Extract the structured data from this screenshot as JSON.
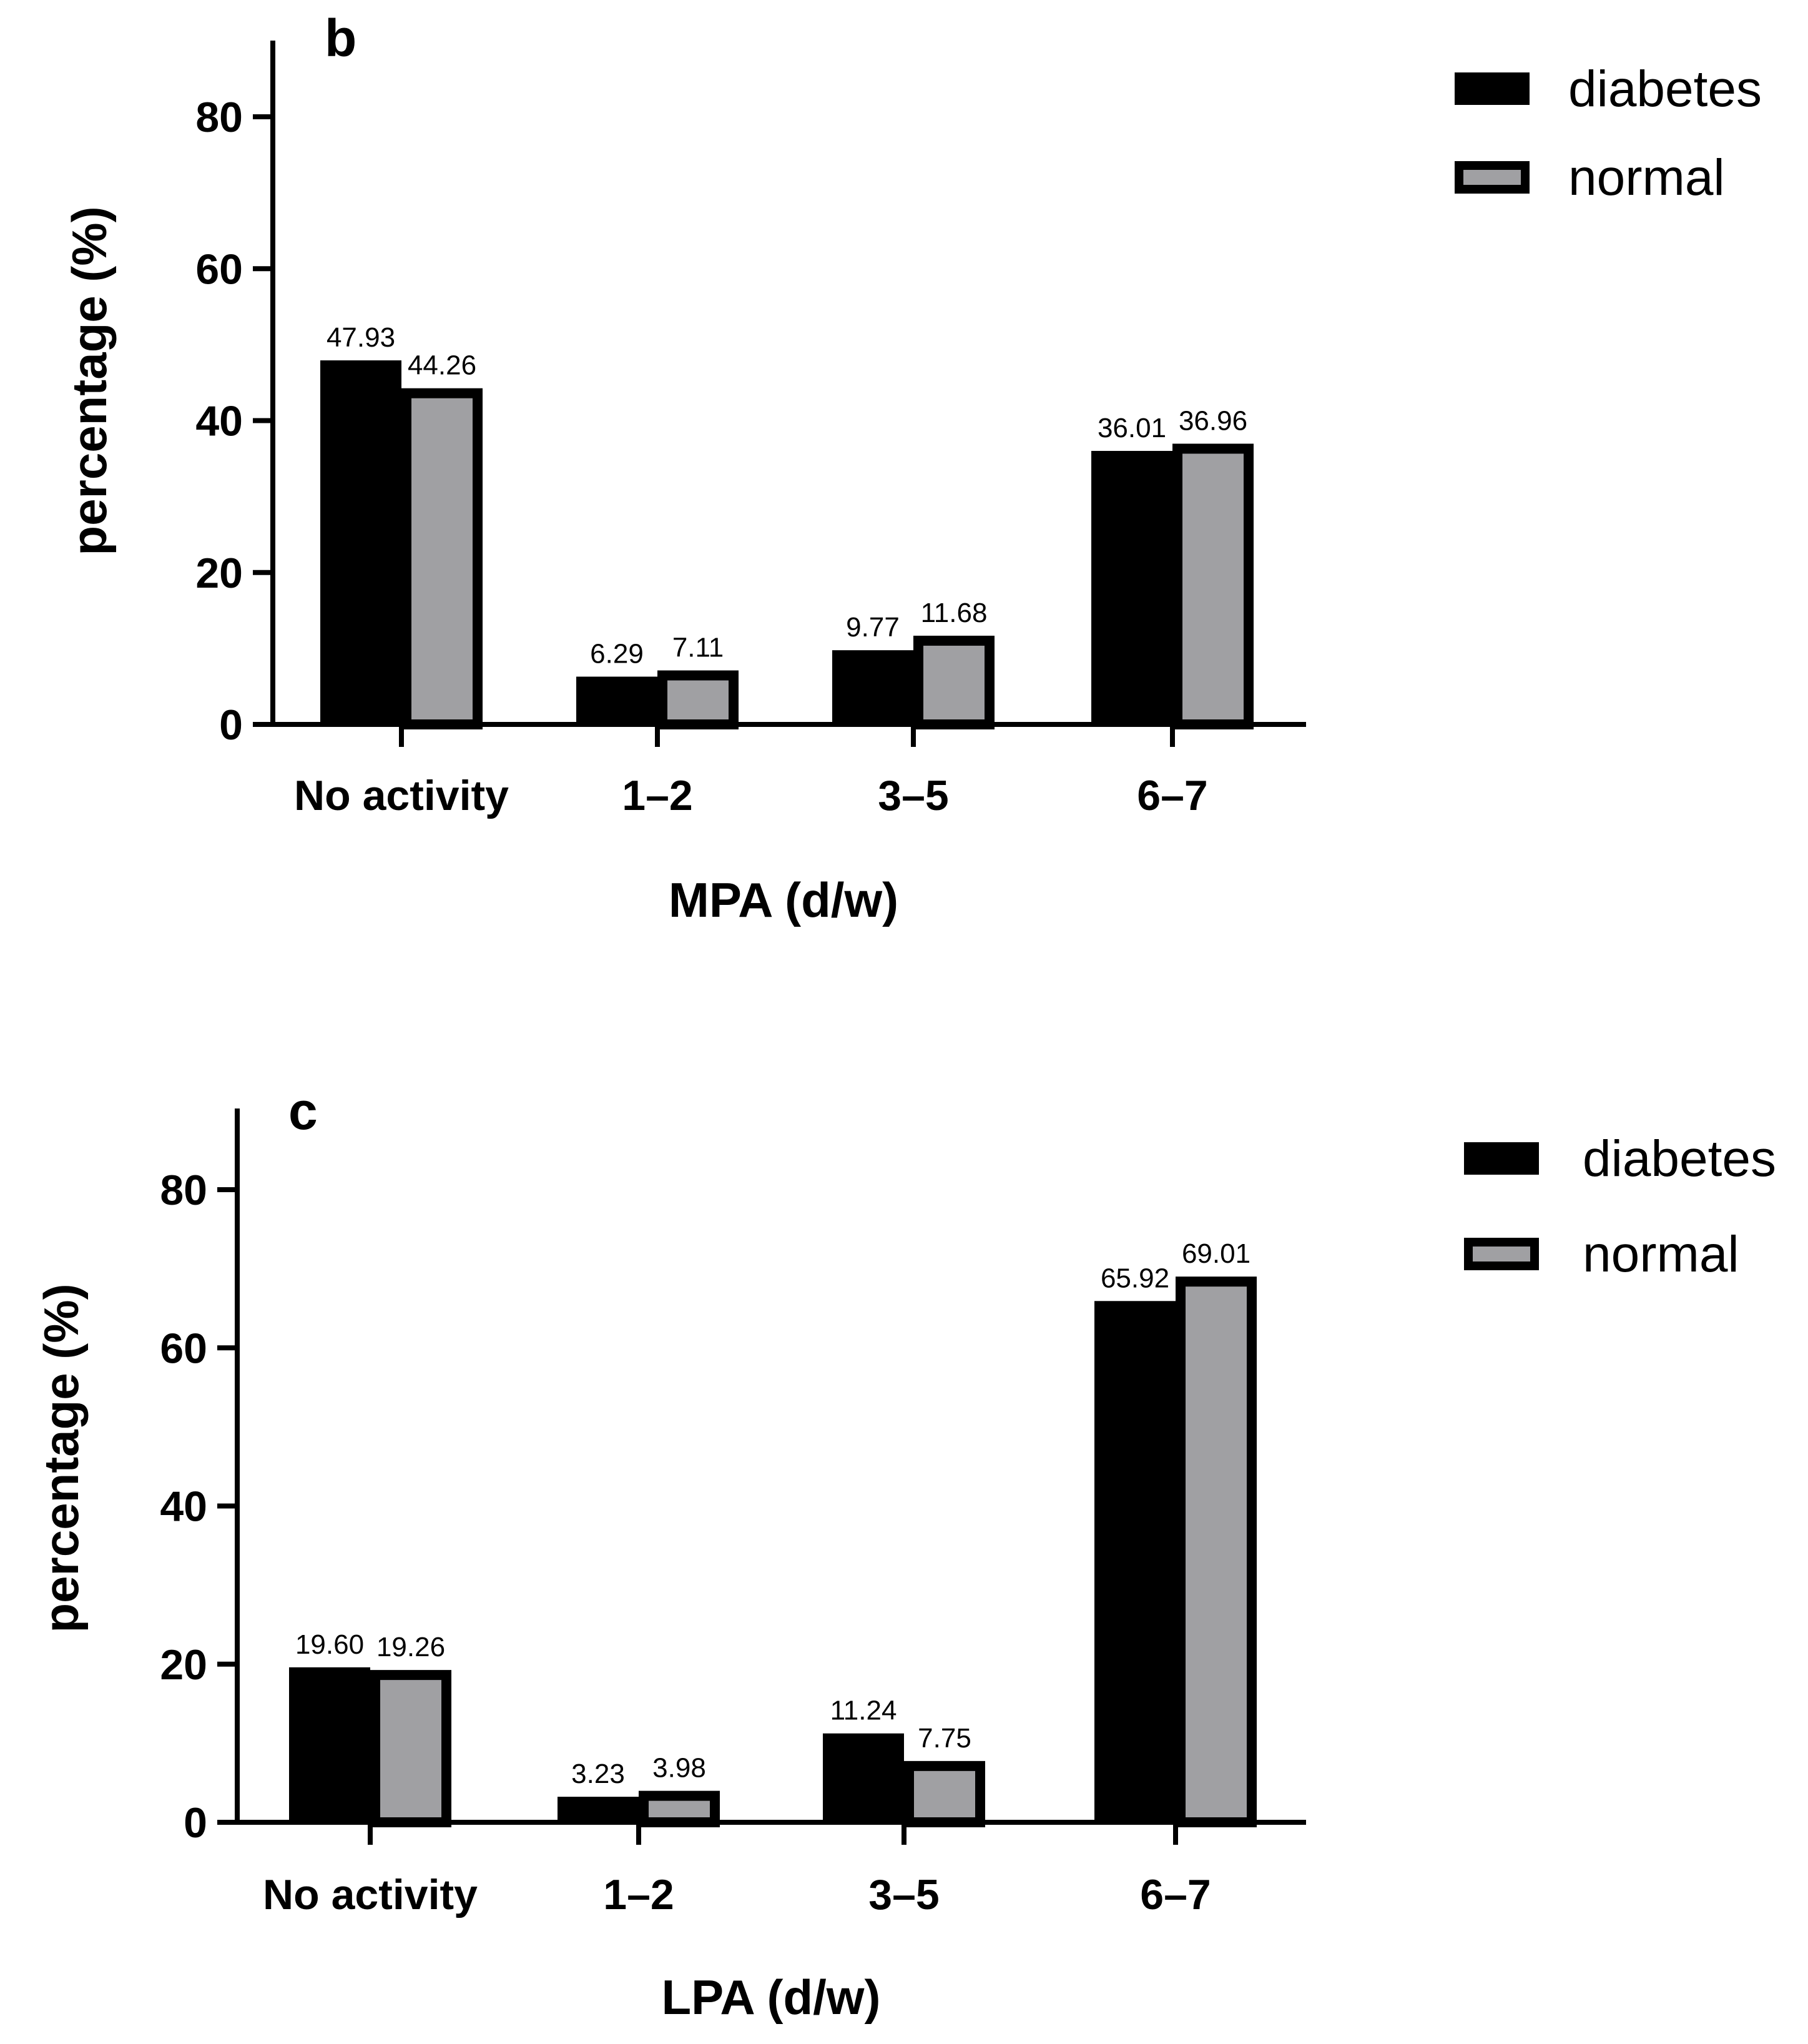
{
  "chart_data": [
    {
      "type": "bar",
      "panel": "b",
      "xlabel": "MPA (d/w)",
      "ylabel": "percentage (%)",
      "categories": [
        "No activity",
        "1–2",
        "3–5",
        "6–7"
      ],
      "series": [
        {
          "name": "diabetes",
          "color": "#000000",
          "values": [
            47.93,
            6.29,
            9.77,
            36.01
          ],
          "labels": [
            "47.93",
            "6.29",
            "9.77",
            "36.01"
          ]
        },
        {
          "name": "normal",
          "color": "#a0a0a3",
          "values": [
            44.26,
            7.11,
            11.68,
            36.96
          ],
          "labels": [
            "44.26",
            "7.11",
            "11.68",
            "36.96"
          ]
        }
      ],
      "ylim": [
        0,
        90
      ],
      "yticks": [
        0,
        20,
        40,
        60,
        80
      ],
      "ytick_labels": [
        "0",
        "20",
        "40",
        "60",
        "80"
      ],
      "legend_position": "top-right",
      "grid": false
    },
    {
      "type": "bar",
      "panel": "c",
      "xlabel": "LPA (d/w)",
      "ylabel": "percentage (%)",
      "categories": [
        "No activity",
        "1–2",
        "3–5",
        "6–7"
      ],
      "series": [
        {
          "name": "diabetes",
          "color": "#000000",
          "values": [
            19.6,
            3.23,
            11.24,
            65.92
          ],
          "labels": [
            "19.60",
            "3.23",
            "11.24",
            "65.92"
          ]
        },
        {
          "name": "normal",
          "color": "#a0a0a3",
          "values": [
            19.26,
            3.98,
            7.75,
            69.01
          ],
          "labels": [
            "19.26",
            "3.98",
            "7.75",
            "69.01"
          ]
        }
      ],
      "ylim": [
        0,
        90
      ],
      "yticks": [
        0,
        20,
        40,
        60,
        80
      ],
      "ytick_labels": [
        "0",
        "20",
        "40",
        "60",
        "80"
      ],
      "legend_position": "top-right",
      "grid": false
    }
  ]
}
